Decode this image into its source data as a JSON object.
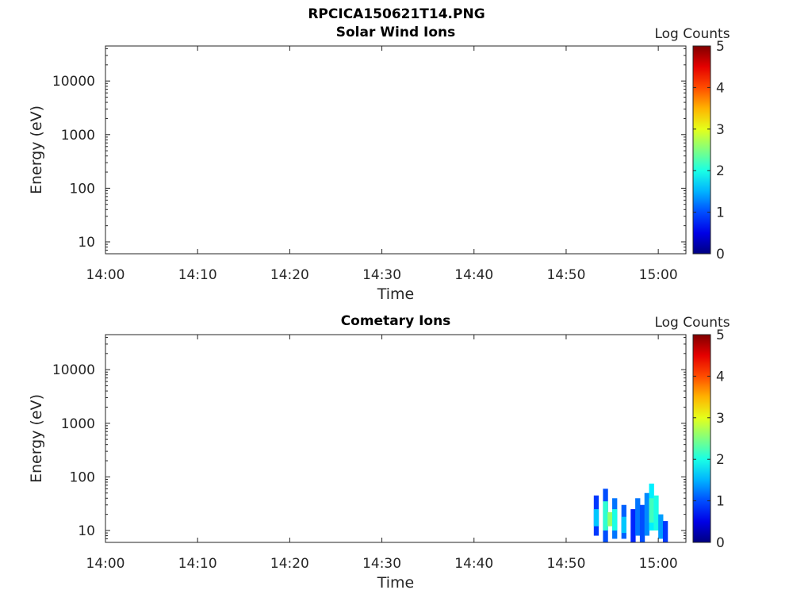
{
  "figure": {
    "title": "RPCICA150621T14.PNG"
  },
  "chart_data": [
    {
      "type": "heatmap",
      "title": "Solar Wind Ions",
      "xlabel": "Time",
      "ylabel": "Energy (eV)",
      "yscale": "log",
      "x_ticks": [
        "14:00",
        "14:10",
        "14:20",
        "14:30",
        "14:40",
        "14:50",
        "15:00"
      ],
      "xlim": [
        "14:00",
        "15:03"
      ],
      "y_ticks": [
        "10",
        "100",
        "1000",
        "10000"
      ],
      "ylim": [
        6,
        45000
      ],
      "colorbar": {
        "label": "Log Counts",
        "ticks": [
          "0",
          "1",
          "2",
          "3",
          "4",
          "5"
        ],
        "range": [
          0,
          5
        ],
        "colormap": "jet"
      },
      "cells": []
    },
    {
      "type": "heatmap",
      "title": "Cometary Ions",
      "xlabel": "Time",
      "ylabel": "Energy (eV)",
      "yscale": "log",
      "x_ticks": [
        "14:00",
        "14:10",
        "14:20",
        "14:30",
        "14:40",
        "14:50",
        "15:00"
      ],
      "xlim": [
        "14:00",
        "15:03"
      ],
      "y_ticks": [
        "10",
        "100",
        "1000",
        "10000"
      ],
      "ylim": [
        6,
        45000
      ],
      "colorbar": {
        "label": "Log Counts",
        "ticks": [
          "0",
          "1",
          "2",
          "3",
          "4",
          "5"
        ],
        "range": [
          0,
          5
        ],
        "colormap": "jet"
      },
      "cells": [
        {
          "t": "14:53:00",
          "e": [
            8,
            45
          ],
          "v": 0.9
        },
        {
          "t": "14:53:00",
          "e": [
            12,
            25
          ],
          "v": 1.6
        },
        {
          "t": "14:54:00",
          "e": [
            6,
            60
          ],
          "v": 1.0
        },
        {
          "t": "14:54:00",
          "e": [
            10,
            35
          ],
          "v": 2.1
        },
        {
          "t": "14:54:30",
          "e": [
            12,
            22
          ],
          "v": 2.6
        },
        {
          "t": "14:55:00",
          "e": [
            7,
            40
          ],
          "v": 1.2
        },
        {
          "t": "14:55:00",
          "e": [
            10,
            25
          ],
          "v": 2.0
        },
        {
          "t": "14:56:00",
          "e": [
            7,
            30
          ],
          "v": 1.1
        },
        {
          "t": "14:56:00",
          "e": [
            9,
            18
          ],
          "v": 1.6
        },
        {
          "t": "14:57:00",
          "e": [
            6,
            25
          ],
          "v": 0.8
        },
        {
          "t": "14:57:30",
          "e": [
            8,
            40
          ],
          "v": 1.2
        },
        {
          "t": "14:58:00",
          "e": [
            6,
            30
          ],
          "v": 1.0
        },
        {
          "t": "14:58:30",
          "e": [
            8,
            50
          ],
          "v": 1.3
        },
        {
          "t": "14:59:00",
          "e": [
            10,
            75
          ],
          "v": 1.8
        },
        {
          "t": "14:59:00",
          "e": [
            14,
            40
          ],
          "v": 2.2
        },
        {
          "t": "14:59:30",
          "e": [
            10,
            45
          ],
          "v": 2.0
        },
        {
          "t": "15:00:00",
          "e": [
            7,
            20
          ],
          "v": 1.4
        },
        {
          "t": "15:00:30",
          "e": [
            6,
            15
          ],
          "v": 0.9
        }
      ]
    }
  ]
}
